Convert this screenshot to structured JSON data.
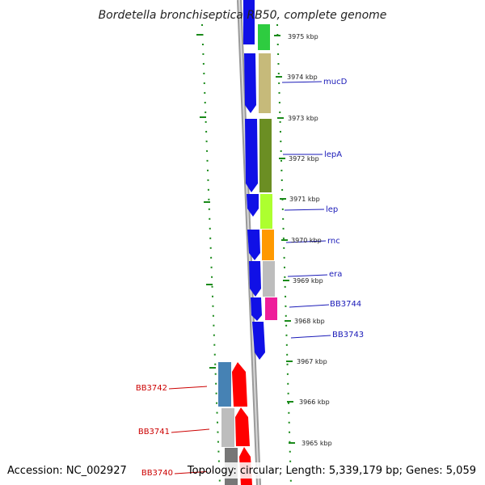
{
  "title": "Bordetella bronchiseptica RB50, complete genome",
  "footer": {
    "accession": "Accession: NC_002927",
    "topology": "Topology: circular; Length: 5,339,179 bp; Genes: 5,059"
  },
  "ticks": [
    "3975 kbp",
    "3974 kbp",
    "3973 kbp",
    "3972 kbp",
    "3971 kbp",
    "3970 kbp",
    "3969 kbp",
    "3968 kbp",
    "3967 kbp",
    "3966 kbp",
    "3965 kbp"
  ],
  "genes_forward": [
    "mucD",
    "lepA",
    "lep",
    "rnc",
    "era",
    "BB3744",
    "BB3743"
  ],
  "genes_reverse": [
    "BB3742",
    "BB3741",
    "BB3740"
  ],
  "colors": {
    "cds_forward": "#1010e6",
    "cds_reverse": "#ff0000",
    "forward_label": "#1a1ab8",
    "reverse_label": "#cc0000",
    "tick_mark": "#1a8a1a",
    "backbone": "#808080"
  }
}
